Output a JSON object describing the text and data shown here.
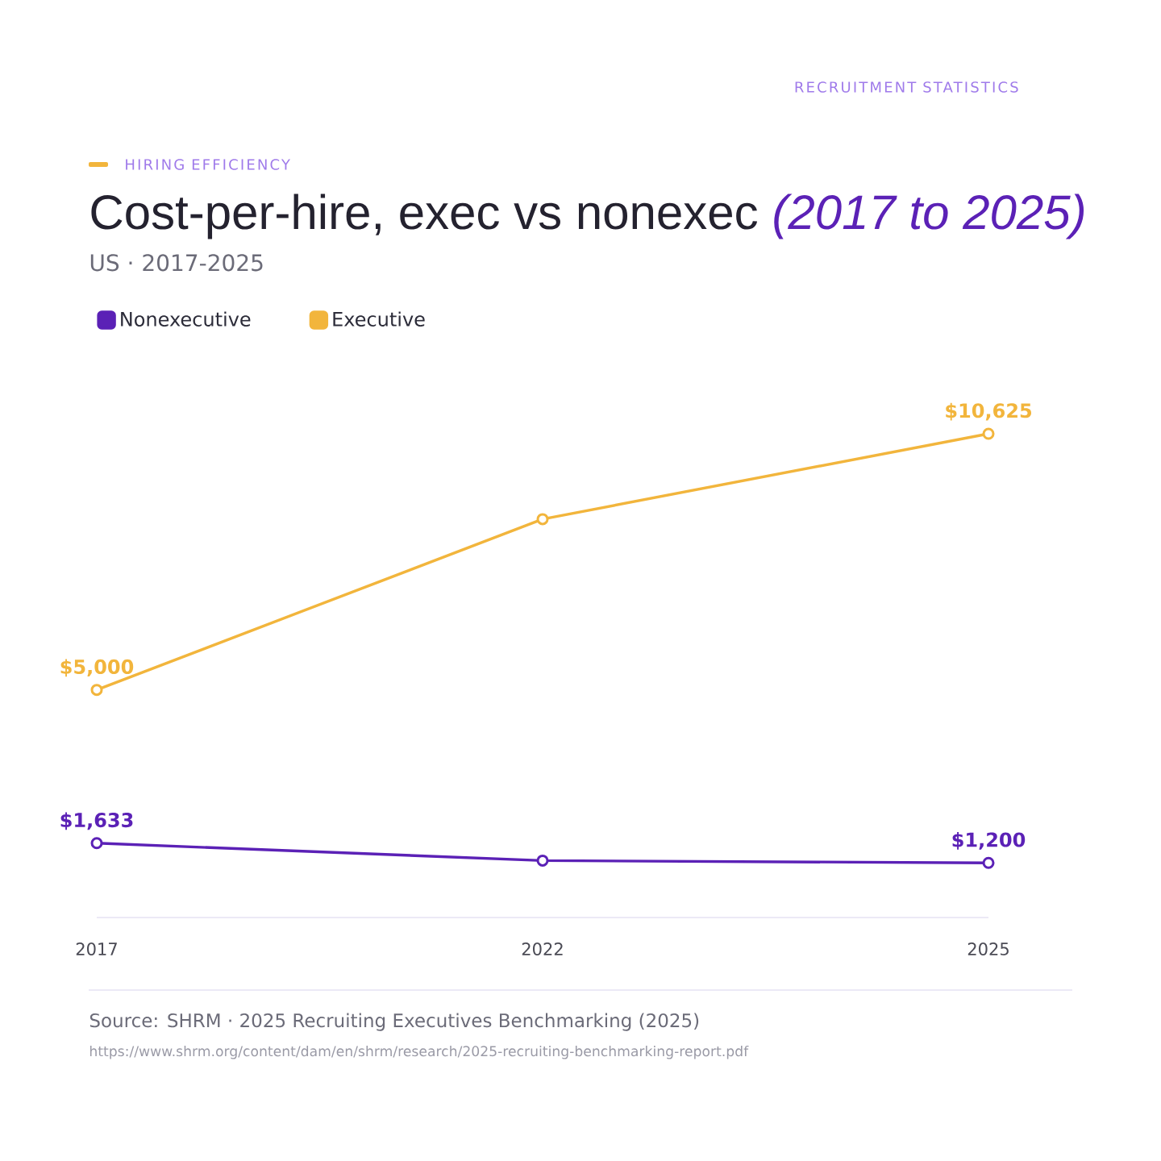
{
  "chart_data": {
    "type": "line",
    "title": "Cost-per-hire, exec vs nonexec *(2017 to 2025)*",
    "subtitle": "US · 2017-2025",
    "categories": [
      "2017",
      "2022",
      "2025"
    ],
    "legend": "top left",
    "marker": "circle",
    "series": [
      {
        "name": "Nonexecutive",
        "color": "#5b21b6",
        "values": [
          1633,
          1250,
          1200
        ],
        "value_labels": [
          "$1,633",
          null,
          "$1,200"
        ]
      },
      {
        "name": "Executive",
        "color": "#f2b53c",
        "values": [
          5000,
          8750,
          10625
        ],
        "value_labels": [
          "$5,000",
          null,
          "$10,625"
        ]
      }
    ],
    "annotations": [
      "HIRING EFFICIENCY",
      "RECRUITMENT STATISTICS",
      "Source: SHRM · 2025 Recruiting Executives Benchmarking (2025)",
      "https://www.shrm.org/content/dam/en/shrm/research/2025-recruiting-benchmarking-report.pdf"
    ]
  }
}
